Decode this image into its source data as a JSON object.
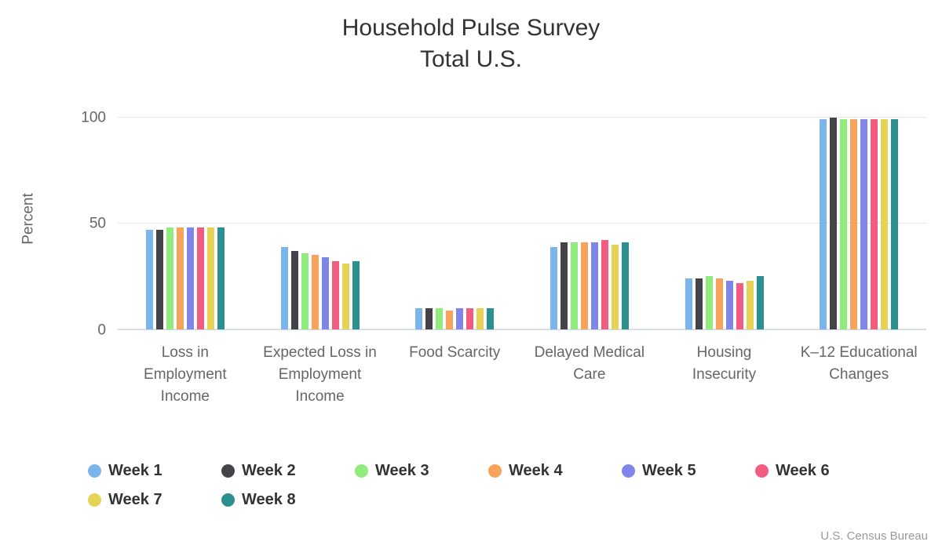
{
  "title": {
    "line1": "Household Pulse Survey",
    "line2": "Total U.S."
  },
  "source": "U.S. Census Bureau",
  "colors": {
    "title_text": "#333333",
    "axis_text": "#666666",
    "gridline": "#e6e6e6",
    "axis_line": "#ccd6eb"
  },
  "chart_data": {
    "type": "bar",
    "title": "Household Pulse Survey Total U.S.",
    "xlabel": "",
    "ylabel": "Percent",
    "ylim": [
      0,
      105
    ],
    "yticks": [
      0,
      50,
      100
    ],
    "grid": true,
    "legend_position": "bottom",
    "categories": [
      "Loss in Employment Income",
      "Expected Loss in Employment Income",
      "Food Scarcity",
      "Delayed Medical Care",
      "Housing Insecurity",
      "K–12 Educational Changes"
    ],
    "series": [
      {
        "name": "Week 1",
        "color": "#7cb5ec",
        "values": [
          47,
          39,
          10,
          39,
          24,
          99
        ]
      },
      {
        "name": "Week 2",
        "color": "#434348",
        "values": [
          47,
          37,
          10,
          41,
          24,
          100
        ]
      },
      {
        "name": "Week 3",
        "color": "#90ed7d",
        "values": [
          48,
          36,
          10,
          41,
          25,
          99
        ]
      },
      {
        "name": "Week 4",
        "color": "#f7a35c",
        "values": [
          48,
          35,
          9,
          41,
          24,
          99
        ]
      },
      {
        "name": "Week 5",
        "color": "#8085e9",
        "values": [
          48,
          34,
          10,
          41,
          23,
          99
        ]
      },
      {
        "name": "Week 6",
        "color": "#f15c80",
        "values": [
          48,
          32,
          10,
          42,
          22,
          99
        ]
      },
      {
        "name": "Week 7",
        "color": "#e4d354",
        "values": [
          48,
          31,
          10,
          40,
          23,
          99
        ]
      },
      {
        "name": "Week 8",
        "color": "#2b908f",
        "values": [
          48,
          32,
          10,
          41,
          25,
          99
        ]
      }
    ]
  }
}
